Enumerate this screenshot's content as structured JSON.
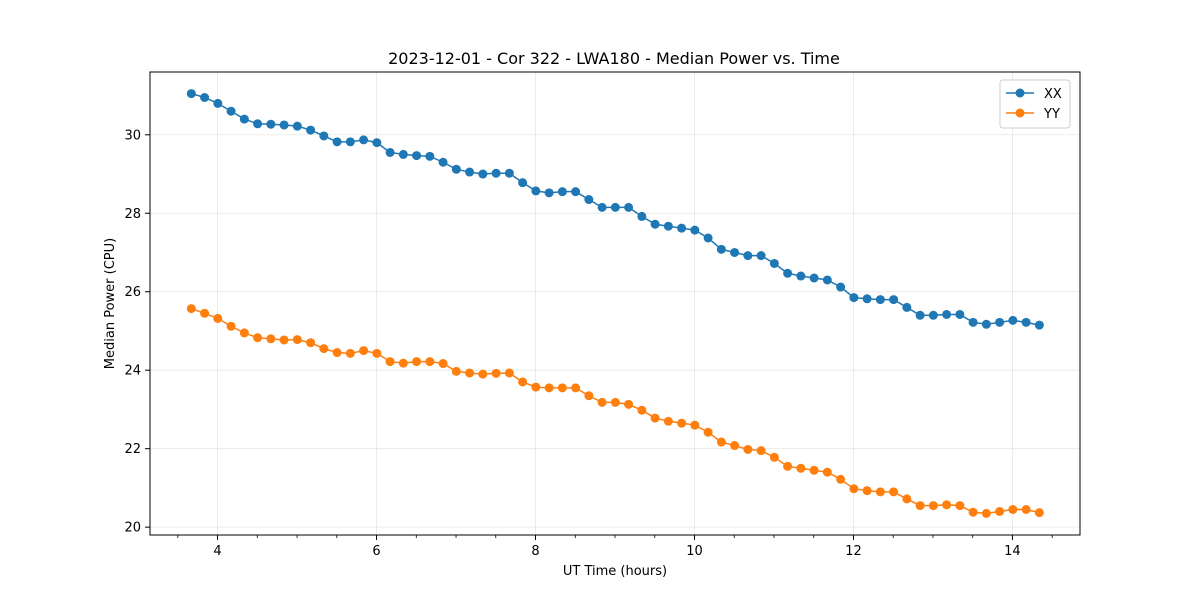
{
  "chart_data": {
    "type": "line",
    "title": "2023-12-01 - Cor 322 - LWA180 - Median Power vs. Time",
    "xlabel": "UT Time (hours)",
    "ylabel": "Median Power (CPU)",
    "xlim": [
      3.15,
      14.85
    ],
    "ylim": [
      19.8,
      31.6
    ],
    "xticks": [
      4,
      6,
      8,
      10,
      12,
      14
    ],
    "xtick_labels": [
      "4",
      "6",
      "8",
      "10",
      "12",
      "14"
    ],
    "xminor_step": 0.5,
    "yticks": [
      20,
      22,
      24,
      26,
      28,
      30
    ],
    "ytick_labels": [
      "20",
      "22",
      "24",
      "26",
      "28",
      "30"
    ],
    "grid": true,
    "legend_position": "top-right",
    "x_start": 3.67,
    "x_step": 0.1667,
    "series": [
      {
        "name": "XX",
        "color": "#1f77b4",
        "marker": "circle",
        "values": [
          31.05,
          30.95,
          30.8,
          30.6,
          30.4,
          30.28,
          30.27,
          30.25,
          30.22,
          30.12,
          29.97,
          29.82,
          29.82,
          29.87,
          29.8,
          29.55,
          29.5,
          29.47,
          29.45,
          29.3,
          29.12,
          29.05,
          29.0,
          29.02,
          29.02,
          28.78,
          28.57,
          28.52,
          28.55,
          28.55,
          28.35,
          28.15,
          28.15,
          28.15,
          27.92,
          27.72,
          27.67,
          27.62,
          27.57,
          27.37,
          27.08,
          27.0,
          26.92,
          26.92,
          26.72,
          26.47,
          26.4,
          26.35,
          26.3,
          26.12,
          25.85,
          25.82,
          25.8,
          25.8,
          25.6,
          25.4,
          25.4,
          25.42,
          25.42,
          25.22,
          25.17,
          25.22,
          25.27,
          25.22,
          25.15
        ]
      },
      {
        "name": "YY",
        "color": "#ff7f0e",
        "marker": "circle",
        "values": [
          25.57,
          25.45,
          25.32,
          25.12,
          24.95,
          24.83,
          24.8,
          24.77,
          24.78,
          24.7,
          24.55,
          24.45,
          24.43,
          24.5,
          24.43,
          24.22,
          24.18,
          24.22,
          24.22,
          24.17,
          23.97,
          23.93,
          23.9,
          23.92,
          23.93,
          23.7,
          23.57,
          23.55,
          23.55,
          23.55,
          23.35,
          23.18,
          23.18,
          23.13,
          22.98,
          22.78,
          22.7,
          22.65,
          22.6,
          22.42,
          22.17,
          22.08,
          21.98,
          21.95,
          21.78,
          21.55,
          21.5,
          21.45,
          21.4,
          21.22,
          20.98,
          20.93,
          20.9,
          20.9,
          20.72,
          20.55,
          20.55,
          20.57,
          20.55,
          20.38,
          20.35,
          20.4,
          20.45,
          20.45,
          20.37
        ]
      }
    ]
  }
}
